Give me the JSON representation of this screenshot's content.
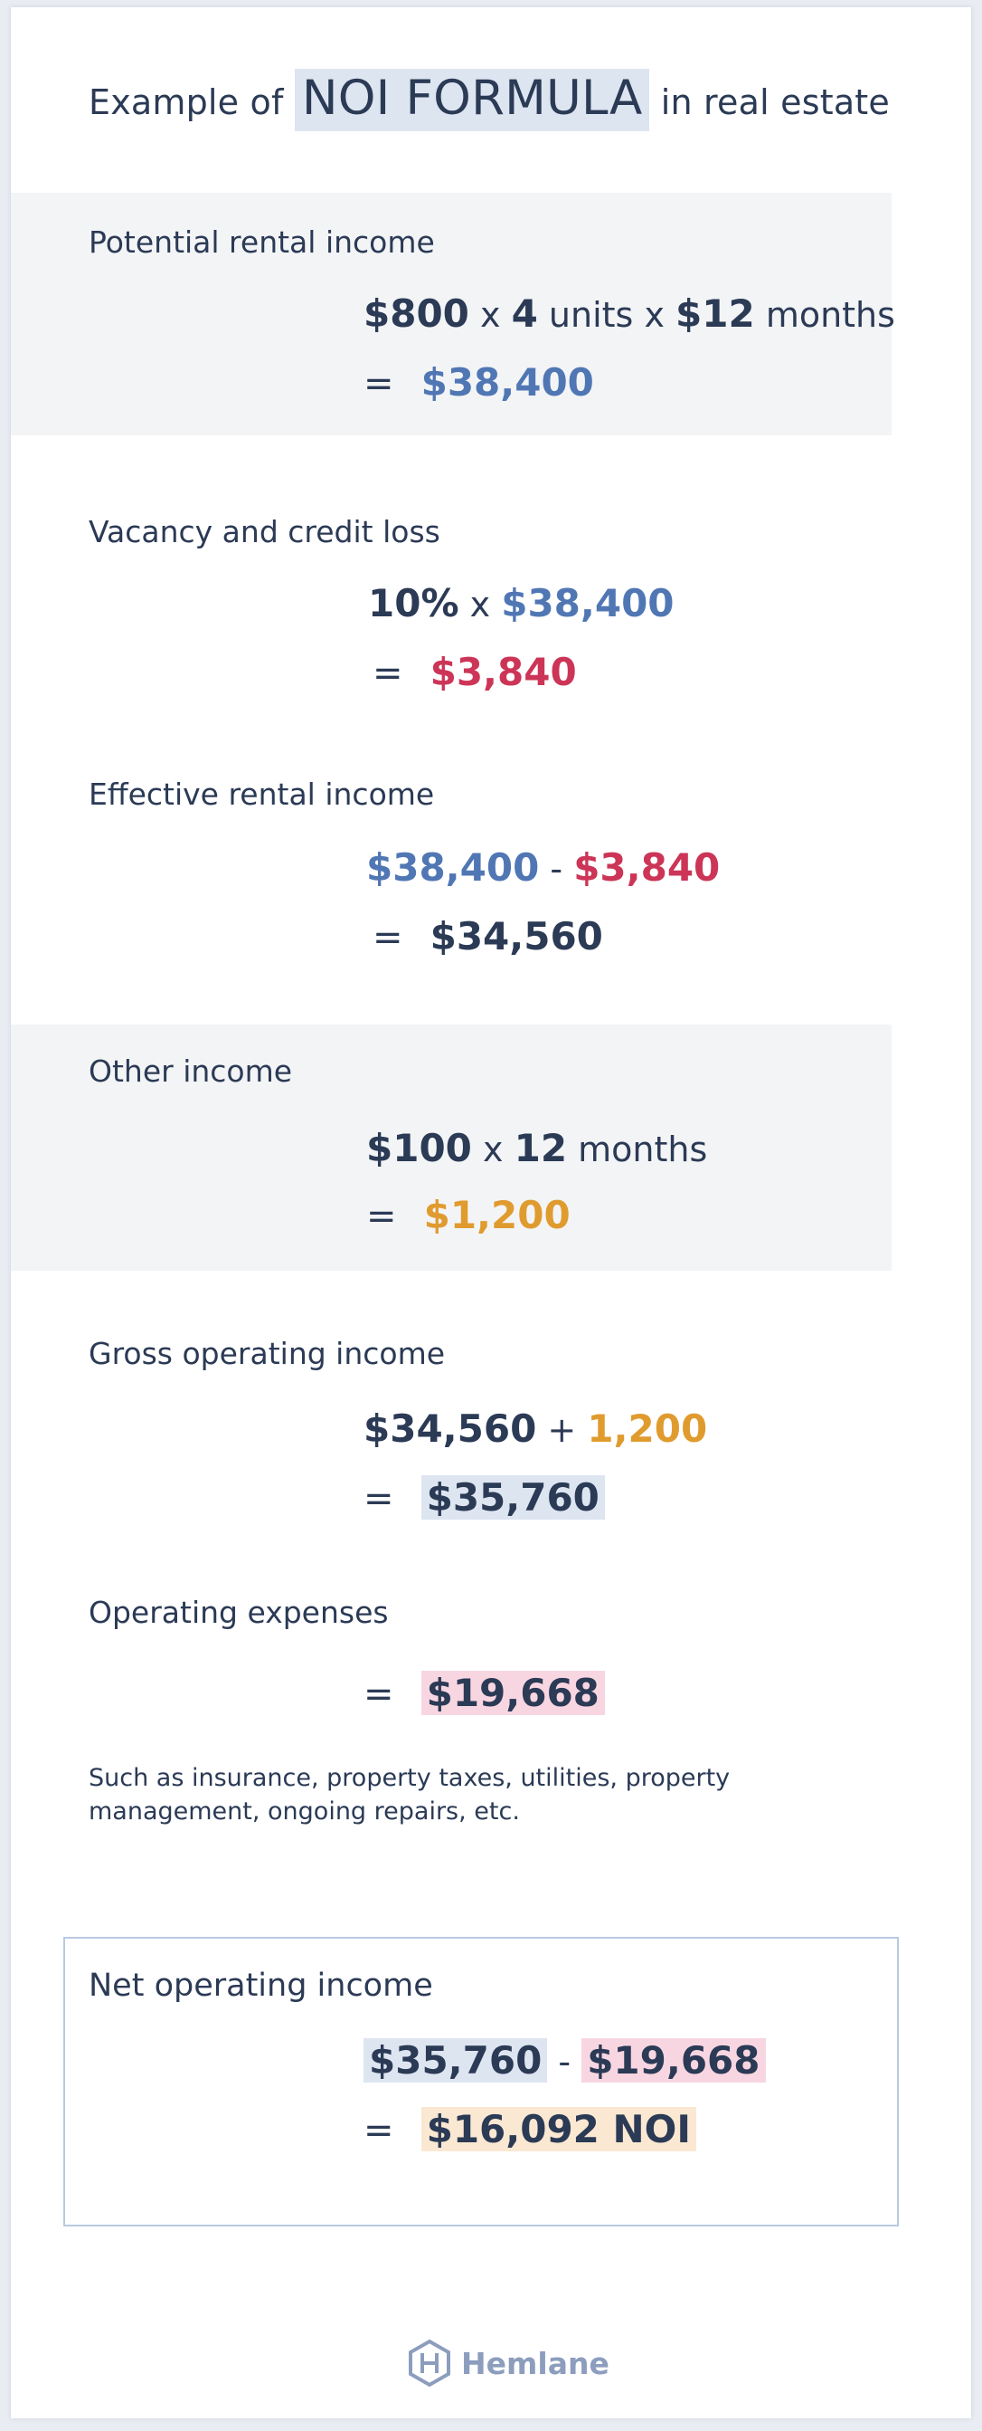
{
  "header": {
    "prefix": "Example of",
    "highlight": "NOI FORMULA",
    "suffix": "in real estate"
  },
  "potential": {
    "label": "Potential rental income",
    "rent": "$800",
    "x1": "x",
    "units_n": "4",
    "units_w": "units",
    "x2": "x",
    "months_n": "$12",
    "months_w": "months",
    "eq": "=",
    "result": "$38,400"
  },
  "vacancy": {
    "label": "Vacancy and credit loss",
    "rate": "10%",
    "x": "x",
    "base": "$38,400",
    "eq": "=",
    "result": "$3,840"
  },
  "effective": {
    "label": "Effective rental income",
    "a": "$38,400",
    "op": "-",
    "b": "$3,840",
    "eq": "=",
    "result": "$34,560"
  },
  "other": {
    "label": "Other income",
    "amount": "$100",
    "x": "x",
    "n": "12",
    "w": "months",
    "eq": "=",
    "result": "$1,200"
  },
  "gross": {
    "label": "Gross operating income",
    "a": "$34,560",
    "op": "+",
    "b": "1,200",
    "eq": "=",
    "result": "$35,760"
  },
  "expenses": {
    "label": "Operating expenses",
    "eq": "=",
    "result": "$19,668",
    "note": "Such as insurance, property taxes, utilities, property management, ongoing repairs, etc."
  },
  "noi": {
    "label": "Net operating income",
    "a": "$35,760",
    "op": "-",
    "b": "$19,668",
    "eq": "=",
    "result": "$16,092 NOI"
  },
  "footer": {
    "brand": "Hemlane"
  },
  "colors": {
    "navy": "#2b3a55",
    "blue": "#5077b4",
    "red": "#cc3557",
    "gold": "#e09b2f",
    "band": "#f3f4f6"
  }
}
